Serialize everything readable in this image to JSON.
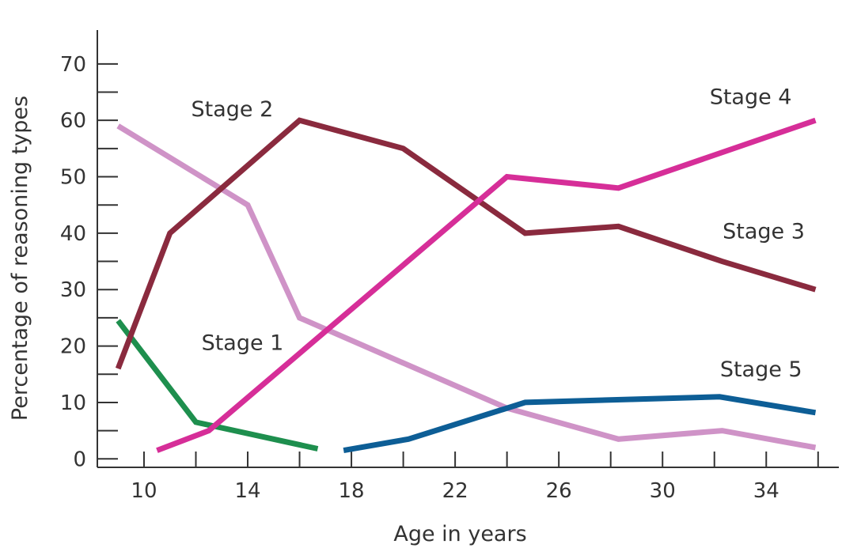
{
  "chart_data": {
    "type": "line",
    "xlabel": "Age in years",
    "ylabel": "Percentage of reasoning types",
    "xlim": [
      8.2,
      36.8
    ],
    "ylim": [
      -1.5,
      76
    ],
    "x_ticks": [
      10,
      12,
      14,
      16,
      18,
      20,
      22,
      24,
      26,
      28,
      30,
      32,
      34,
      36
    ],
    "x_tick_labels": [
      "10",
      "14",
      "18",
      "22",
      "26",
      "30",
      "34"
    ],
    "x_tick_label_values": [
      10,
      14,
      18,
      22,
      26,
      30,
      34
    ],
    "y_ticks": [
      0,
      5,
      10,
      15,
      20,
      25,
      30,
      35,
      40,
      45,
      50,
      55,
      60,
      65,
      70
    ],
    "y_tick_labels": [
      "0",
      "10",
      "20",
      "30",
      "40",
      "50",
      "60",
      "70"
    ],
    "y_tick_label_values": [
      0,
      10,
      20,
      30,
      40,
      50,
      60,
      70
    ],
    "grid": false,
    "legend": "none",
    "series": [
      {
        "name": "Stage 1",
        "color": "#1e8f4e",
        "x": [
          9,
          12,
          16.7
        ],
        "y": [
          24.5,
          6.5,
          1.8
        ]
      },
      {
        "name": "Stage 2",
        "color": "#cf93c7",
        "x": [
          9,
          14,
          16,
          24,
          28.3,
          32.3,
          35.9
        ],
        "y": [
          59,
          45,
          25,
          9,
          3.5,
          5,
          2
        ]
      },
      {
        "name": "Stage 3",
        "color": "#8a2a3e",
        "x": [
          9,
          11,
          16,
          20,
          24.7,
          28.3,
          32.3,
          35.9
        ],
        "y": [
          16,
          40,
          60,
          55,
          40,
          41.2,
          35,
          30
        ]
      },
      {
        "name": "Stage 4",
        "color": "#d62e98",
        "x": [
          10.5,
          12.5,
          24,
          28.3,
          35.9
        ],
        "y": [
          1.5,
          5,
          50,
          48,
          60
        ]
      },
      {
        "name": "Stage 5",
        "color": "#0d5e96",
        "x": [
          17.7,
          20.2,
          24.7,
          32.2,
          35.9
        ],
        "y": [
          1.5,
          3.5,
          10,
          11,
          8.2
        ]
      }
    ],
    "annotations": [
      {
        "text": "Stage 1",
        "x": 13.8,
        "y": 19.3,
        "anchor": "middle"
      },
      {
        "text": "Stage 2",
        "x": 13.4,
        "y": 60.7,
        "anchor": "middle"
      },
      {
        "text": "Stage 3",
        "x": 33.9,
        "y": 39.1,
        "anchor": "middle"
      },
      {
        "text": "Stage 4",
        "x": 33.4,
        "y": 62.9,
        "anchor": "middle"
      },
      {
        "text": "Stage 5",
        "x": 33.8,
        "y": 14.6,
        "anchor": "middle"
      }
    ]
  }
}
